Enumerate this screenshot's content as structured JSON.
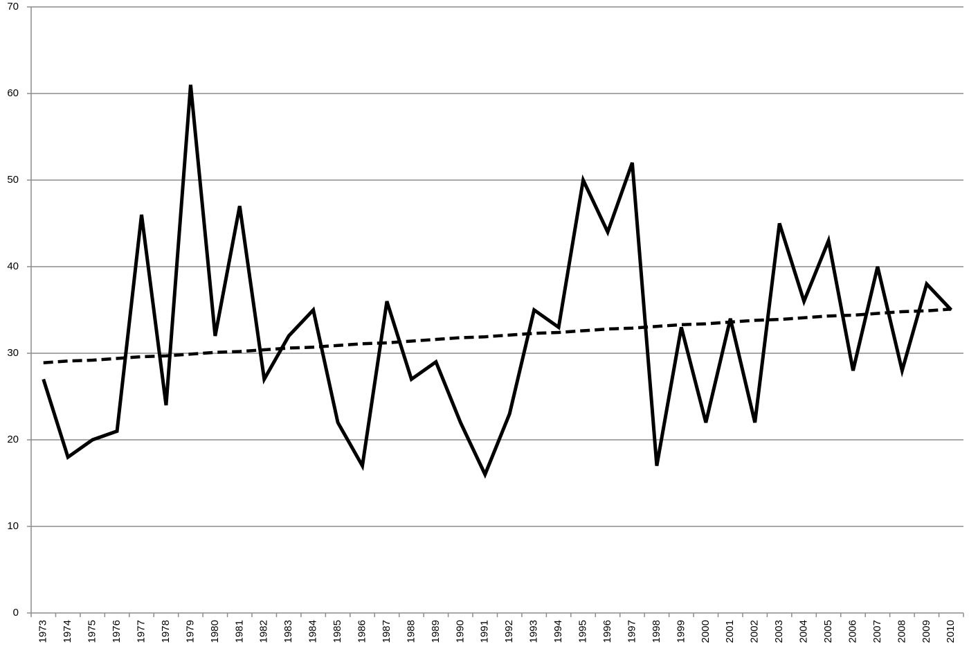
{
  "chart_data": {
    "type": "line",
    "categories": [
      "1973",
      "1974",
      "1975",
      "1976",
      "1977",
      "1978",
      "1979",
      "1980",
      "1981",
      "1982",
      "1983",
      "1984",
      "1985",
      "1986",
      "1987",
      "1988",
      "1989",
      "1990",
      "1991",
      "1992",
      "1993",
      "1994",
      "1995",
      "1996",
      "1997",
      "1998",
      "1999",
      "2000",
      "2001",
      "2002",
      "2003",
      "2004",
      "2005",
      "2006",
      "2007",
      "2008",
      "2009",
      "2010"
    ],
    "series": [
      {
        "color": "#000000",
        "values": [
          27,
          18,
          20,
          21,
          46,
          24,
          61,
          32,
          47,
          27,
          32,
          35,
          22,
          17,
          36,
          27,
          29,
          22,
          16,
          23,
          35,
          33,
          50,
          44,
          52,
          17,
          33,
          22,
          34,
          22,
          45,
          36,
          43,
          28,
          40,
          28,
          38,
          35
        ]
      },
      {
        "color": "#000000",
        "dashed": true,
        "values": [
          28.9,
          29.1,
          29.2,
          29.4,
          29.6,
          29.7,
          29.9,
          30.1,
          30.2,
          30.4,
          30.6,
          30.7,
          30.9,
          31.1,
          31.2,
          31.4,
          31.6,
          31.8,
          31.9,
          32.1,
          32.3,
          32.4,
          32.6,
          32.8,
          32.9,
          33.1,
          33.3,
          33.4,
          33.6,
          33.8,
          33.9,
          34.1,
          34.3,
          34.4,
          34.6,
          34.8,
          34.9,
          35.1
        ]
      }
    ],
    "ylim": [
      0,
      70
    ],
    "yticks": [
      0,
      10,
      20,
      30,
      40,
      50,
      60,
      70
    ],
    "grid": true
  }
}
